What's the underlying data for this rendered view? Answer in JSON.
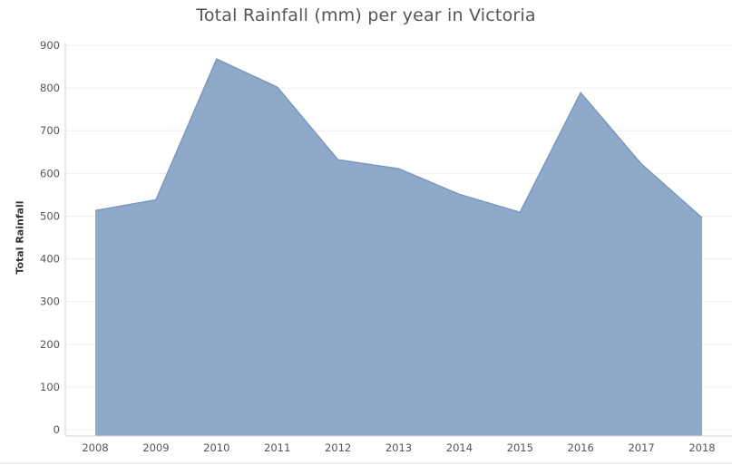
{
  "chart_data": {
    "type": "area",
    "title": "Total Rainfall (mm) per year in Victoria",
    "xlabel": "",
    "ylabel": "Total Rainfall",
    "categories": [
      "2008",
      "2009",
      "2010",
      "2011",
      "2012",
      "2013",
      "2014",
      "2015",
      "2016",
      "2017",
      "2018"
    ],
    "values": [
      513,
      538,
      868,
      802,
      632,
      611,
      551,
      509,
      789,
      622,
      496
    ],
    "ylim": [
      0,
      900
    ],
    "yticks": [
      0,
      100,
      200,
      300,
      400,
      500,
      600,
      700,
      800,
      900
    ],
    "grid": true,
    "legend": "none",
    "colors": {
      "fill": "#8fa9c8",
      "stroke": "#7b98bd",
      "grid": "#eeeeee",
      "axis": "#d6d6d6"
    }
  }
}
